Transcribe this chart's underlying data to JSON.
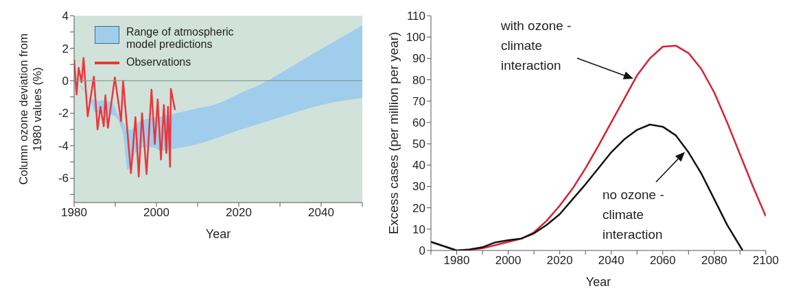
{
  "chart_data": [
    {
      "type": "line",
      "xlabel": "Year",
      "ylabel": "Column ozone deviation from 1980 values (%)",
      "xlim": [
        1980,
        2050
      ],
      "xticks": [
        1980,
        {
          "value": 1990,
          "label": null
        },
        2000,
        {
          "value": 2010,
          "label": null
        },
        2020,
        {
          "value": 2030,
          "label": null
        },
        2040,
        {
          "value": 2050,
          "label": null
        }
      ],
      "ylim": [
        -7.5,
        4
      ],
      "yticks": [
        {
          "value": -7,
          "label": null
        },
        -6,
        {
          "value": -5,
          "label": null
        },
        -4,
        {
          "value": -3,
          "label": null
        },
        -2,
        {
          "value": -1,
          "label": null
        },
        0,
        {
          "value": 1,
          "label": null
        },
        2,
        {
          "value": 3,
          "label": null
        },
        4
      ],
      "legend": "top left",
      "ref_lines": [
        {
          "axis": "y",
          "value": 0,
          "color": "#7f9a96"
        }
      ],
      "series": [
        {
          "name": "Range of atmospheric model predictions",
          "type": "area",
          "color": "#a0cdec",
          "x": [
            1980,
            1981,
            1982,
            1984,
            1985,
            1986,
            1987,
            1988,
            1989,
            1990,
            1991,
            1992,
            1993,
            1994,
            1995,
            1997,
            1999,
            2001,
            2004,
            2010,
            2015,
            2020,
            2027,
            2030,
            2040,
            2050
          ],
          "values": [
            null,
            null,
            null,
            null,
            null,
            null,
            null,
            null,
            null,
            null,
            null,
            null,
            null,
            null,
            null,
            null,
            null,
            null,
            null,
            null,
            null,
            null,
            null,
            null,
            null,
            null
          ],
          "lower": [
            0,
            -0.2,
            -0.4,
            -1.3,
            -1.9,
            -2.0,
            -2.0,
            -2.05,
            -2.1,
            -2.2,
            -2.6,
            -3.5,
            -5.5,
            -5.0,
            -4.4,
            -4.1,
            -4.1,
            -4.3,
            -4.2,
            -3.9,
            -3.5,
            -3.05,
            -2.5,
            -2.25,
            -1.5,
            -1.05
          ],
          "upper": [
            0,
            -0.2,
            -0.5,
            -1.1,
            -1.2,
            -1.25,
            -1.2,
            -1.25,
            -1.3,
            -1.7,
            -2.3,
            -2.6,
            -3.0,
            -3.0,
            -2.7,
            -2.4,
            -2.3,
            -2.2,
            -2.05,
            -1.7,
            -1.4,
            -0.8,
            0.0,
            0.45,
            1.95,
            3.4
          ]
        },
        {
          "name": "Observations",
          "type": "line",
          "color": "#e8383d",
          "x": [
            1980.0,
            1980.6,
            1981.1,
            1981.8,
            1982.3,
            1983.3,
            1984.8,
            1985.7,
            1986.4,
            1987.2,
            1987.6,
            1988.2,
            1989.9,
            1991.4,
            1991.9,
            1993.8,
            1994.9,
            1995.7,
            1996.5,
            1997.6,
            1998.8,
            1999.6,
            2000.3,
            2001.1,
            2001.8,
            2002.4,
            2002.8,
            2003.3,
            2003.5,
            2004.5
          ],
          "values": [
            1.3,
            -0.85,
            0.8,
            -0.1,
            1.4,
            -2.2,
            0.25,
            -3.0,
            -1.6,
            -2.8,
            -0.9,
            -2.9,
            0.2,
            -2.5,
            0.0,
            -5.7,
            -2.25,
            -5.9,
            -2.0,
            -5.75,
            -0.55,
            -3.9,
            -1.15,
            -4.85,
            -1.5,
            -4.45,
            -1.6,
            -5.3,
            -0.5,
            -1.8
          ]
        }
      ]
    },
    {
      "type": "line",
      "xlabel": "Year",
      "ylabel": "Excess cases (per million per year)",
      "xlim": [
        1970,
        2100
      ],
      "xticks": [
        {
          "value": 1970,
          "label": null
        },
        1980,
        {
          "value": 1990,
          "label": null
        },
        2000,
        {
          "value": 2010,
          "label": null
        },
        2020,
        {
          "value": 2030,
          "label": null
        },
        2040,
        {
          "value": 2050,
          "label": null
        },
        2060,
        {
          "value": 2070,
          "label": null
        },
        2080,
        {
          "value": 2090,
          "label": null
        },
        2100
      ],
      "ylim": [
        0,
        110
      ],
      "yticks": [
        0,
        10,
        20,
        30,
        40,
        50,
        60,
        70,
        80,
        90,
        100,
        110
      ],
      "legend": false,
      "annotations": [
        "with ozone - climate interaction",
        "no ozone - climate interaction"
      ],
      "series": [
        {
          "type": "line",
          "color": "#d9202f",
          "x": [
            1970,
            1980,
            1985,
            1990,
            1995,
            2000,
            2005,
            2010,
            2015,
            2020,
            2025,
            2030,
            2035,
            2040,
            2045,
            2050,
            2055,
            2060,
            2065,
            2070,
            2075,
            2080,
            2085,
            2090,
            2095,
            2100
          ],
          "values": [
            4,
            0,
            0.3,
            1,
            2.5,
            4,
            5.5,
            8.5,
            14,
            21,
            29,
            38.5,
            49,
            60,
            71,
            82,
            90,
            95.5,
            96,
            92.5,
            85,
            74,
            60,
            45,
            30,
            16
          ]
        },
        {
          "type": "line",
          "color": "#111111",
          "x": [
            1970,
            1980,
            1985,
            1990,
            1995,
            2000,
            2005,
            2010,
            2015,
            2020,
            2025,
            2030,
            2035,
            2040,
            2045,
            2050,
            2055,
            2060,
            2065,
            2070,
            2075,
            2080,
            2085,
            2091
          ],
          "values": [
            4,
            0,
            0.5,
            1.5,
            3.8,
            4.8,
            5.5,
            8,
            12,
            17,
            24,
            31,
            38.5,
            46,
            52,
            56.5,
            59,
            58,
            54,
            46,
            36,
            24,
            12,
            0
          ]
        }
      ]
    }
  ]
}
